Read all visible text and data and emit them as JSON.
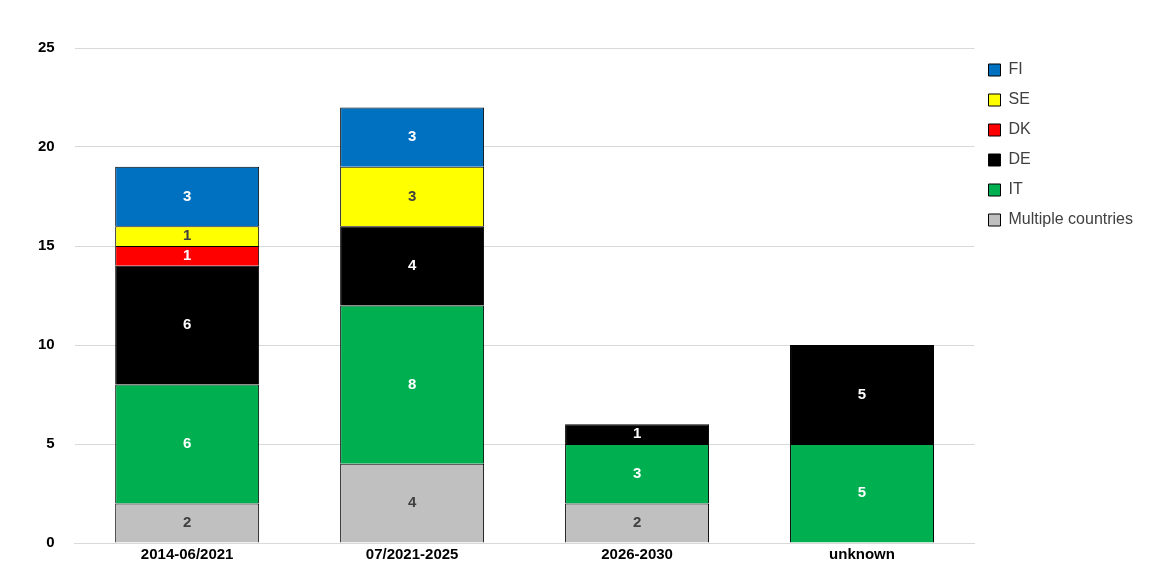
{
  "chart_data": {
    "type": "bar",
    "stacked": true,
    "categories": [
      "2014-06/2021",
      "07/2021-2025",
      "2026-2030",
      "unknown"
    ],
    "series": [
      {
        "name": "Multiple countries",
        "color": "#c0c0c0",
        "values": [
          2,
          4,
          2,
          null
        ]
      },
      {
        "name": "IT",
        "color": "#00b050",
        "values": [
          6,
          8,
          3,
          5
        ]
      },
      {
        "name": "DE",
        "color": "#000000",
        "values": [
          6,
          4,
          1,
          5
        ]
      },
      {
        "name": "DK",
        "color": "#ff0000",
        "values": [
          1,
          null,
          null,
          null
        ]
      },
      {
        "name": "SE",
        "color": "#ffff00",
        "values": [
          1,
          3,
          null,
          null
        ]
      },
      {
        "name": "FI",
        "color": "#0070c0",
        "values": [
          3,
          3,
          null,
          null
        ]
      }
    ],
    "ylim": [
      0,
      25
    ],
    "yticks": [
      0,
      5,
      10,
      15,
      20,
      25
    ],
    "grid": "y",
    "legend": "top right",
    "data_labels": true
  }
}
